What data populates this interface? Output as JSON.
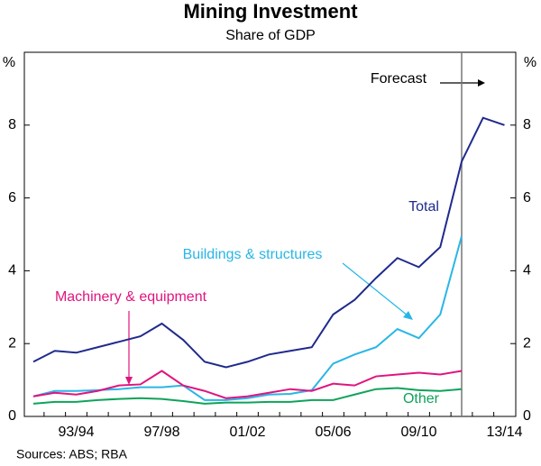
{
  "chart_data": {
    "type": "line",
    "title": "Mining Investment",
    "subtitle": "Share of GDP",
    "y_unit": "%",
    "source": "Sources: ABS; RBA",
    "annotation": "Forecast",
    "categories": [
      null,
      null,
      "93/94",
      null,
      null,
      null,
      "97/98",
      null,
      null,
      null,
      "01/02",
      null,
      null,
      null,
      "05/06",
      null,
      null,
      null,
      "09/10",
      null,
      null,
      null,
      "13/14"
    ],
    "ylim": [
      0,
      10
    ],
    "yticks": [
      0,
      2,
      4,
      6,
      8
    ],
    "series": [
      {
        "name": "Total",
        "color": "#1f2a8c",
        "values": [
          1.5,
          1.8,
          1.75,
          1.9,
          2.05,
          2.2,
          2.55,
          2.1,
          1.5,
          1.35,
          1.5,
          1.7,
          1.8,
          1.9,
          2.8,
          3.2,
          3.8,
          4.35,
          4.1,
          4.65,
          7.0,
          8.2,
          8.0
        ]
      },
      {
        "name": "Buildings & structures",
        "color": "#29b6e6",
        "values": [
          0.55,
          0.7,
          0.7,
          0.72,
          0.75,
          0.8,
          0.8,
          0.85,
          0.45,
          0.45,
          0.5,
          0.6,
          0.62,
          0.72,
          1.45,
          1.7,
          1.9,
          2.4,
          2.15,
          2.8,
          4.95,
          null,
          null
        ]
      },
      {
        "name": "Machinery & equipment",
        "color": "#e0147f",
        "values": [
          0.55,
          0.65,
          0.6,
          0.7,
          0.85,
          0.88,
          1.25,
          0.85,
          0.7,
          0.5,
          0.55,
          0.65,
          0.75,
          0.7,
          0.9,
          0.85,
          1.1,
          1.15,
          1.2,
          1.15,
          1.25,
          null,
          null
        ]
      },
      {
        "name": "Other",
        "color": "#0ea35a",
        "values": [
          0.35,
          0.4,
          0.4,
          0.45,
          0.48,
          0.5,
          0.48,
          0.42,
          0.35,
          0.38,
          0.38,
          0.4,
          0.4,
          0.45,
          0.45,
          0.6,
          0.75,
          0.78,
          0.72,
          0.7,
          0.75,
          null,
          null
        ]
      }
    ]
  }
}
